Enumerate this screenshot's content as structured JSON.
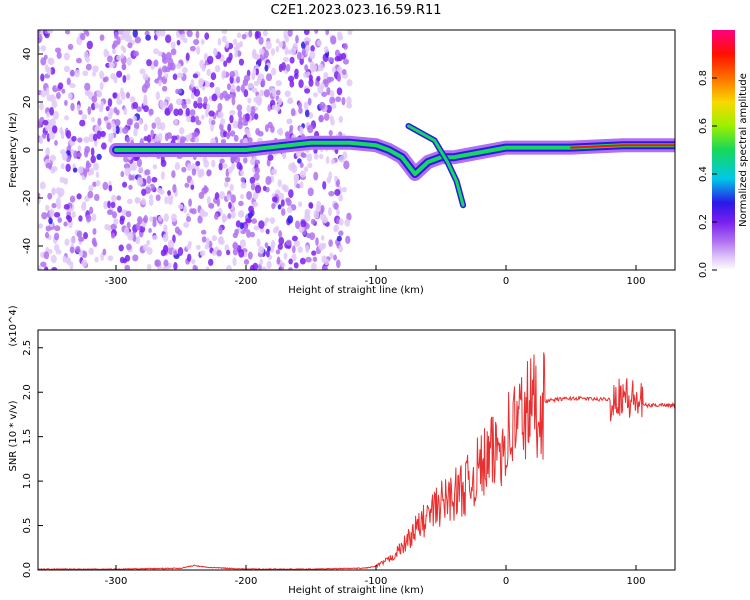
{
  "title": "C2E1.2023.023.16.59.R11",
  "colors": {
    "snr_line": "#e83030",
    "spectrogram_ridge": "#16d85a",
    "spectrogram_scatter": "#7a1ff0",
    "colormap": [
      "#ffffff",
      "#e0c8f8",
      "#b070f0",
      "#7a1ff0",
      "#2a18e8",
      "#00c8e8",
      "#16d85a",
      "#9cf000",
      "#f8d800",
      "#ff7000",
      "#ff1000",
      "#ff0080"
    ]
  },
  "chart_data": [
    {
      "type": "heatmap",
      "title": "C2E1.2023.023.16.59.R11",
      "xlabel": "Height of straight line (km)",
      "ylabel": "Frequency (Hz)",
      "xlim": [
        -360,
        130
      ],
      "ylim": [
        -50,
        50
      ],
      "x_ticks": [
        -300,
        -200,
        -100,
        0,
        100
      ],
      "y_ticks": [
        -40,
        -20,
        0,
        20,
        40
      ],
      "colorbar": {
        "label": "Normalized spectral amplitude",
        "range": [
          0.0,
          1.0
        ],
        "ticks": [
          "0.0",
          "0.2",
          "0.4",
          "0.6",
          "0.8"
        ]
      },
      "noise_region_km": [
        -360,
        -120
      ],
      "main_ridge": {
        "x": [
          -300,
          -250,
          -200,
          -150,
          -120,
          -100,
          -90,
          -80,
          -70,
          -60,
          -50,
          -40,
          -20,
          0,
          20,
          50,
          90,
          130
        ],
        "y": [
          0,
          0,
          0,
          3,
          3,
          2,
          0,
          -3,
          -10,
          -5,
          -3,
          -3,
          -1,
          1,
          1,
          1,
          2,
          2
        ]
      },
      "secondary_branch": {
        "x": [
          -75,
          -65,
          -55,
          -45,
          -38,
          -33
        ],
        "y": [
          10,
          7,
          4,
          -5,
          -13,
          -23
        ]
      }
    },
    {
      "type": "line",
      "xlabel": "Height of straight line (km)",
      "ylabel": "SNR (10 * v/v)",
      "y_multiplier": "(x10^4)",
      "xlim": [
        -360,
        130
      ],
      "ylim": [
        0,
        2.7
      ],
      "x_ticks": [
        -300,
        -200,
        -100,
        0,
        100
      ],
      "y_ticks": [
        "0.0",
        "0.5",
        "1.0",
        "1.5",
        "2.0",
        "2.5"
      ],
      "series": [
        {
          "x": [
            -360,
            -300,
            -250,
            -240,
            -230,
            -200,
            -150,
            -110,
            -100,
            -90,
            -80,
            -70,
            -60,
            -50,
            -40,
            -30,
            -20,
            -10,
            0,
            10,
            20,
            30,
            40,
            50,
            60,
            70,
            80,
            85,
            90,
            95,
            100,
            105,
            110,
            120,
            130
          ],
          "values": [
            0.01,
            0.01,
            0.02,
            0.05,
            0.03,
            0.01,
            0.01,
            0.02,
            0.04,
            0.12,
            0.25,
            0.45,
            0.6,
            0.75,
            0.85,
            0.95,
            1.15,
            1.3,
            1.5,
            1.7,
            1.85,
            1.9,
            1.92,
            1.93,
            1.93,
            1.92,
            1.92,
            1.95,
            2.0,
            1.9,
            1.92,
            1.86,
            1.85,
            1.86,
            1.85
          ]
        }
      ]
    }
  ]
}
